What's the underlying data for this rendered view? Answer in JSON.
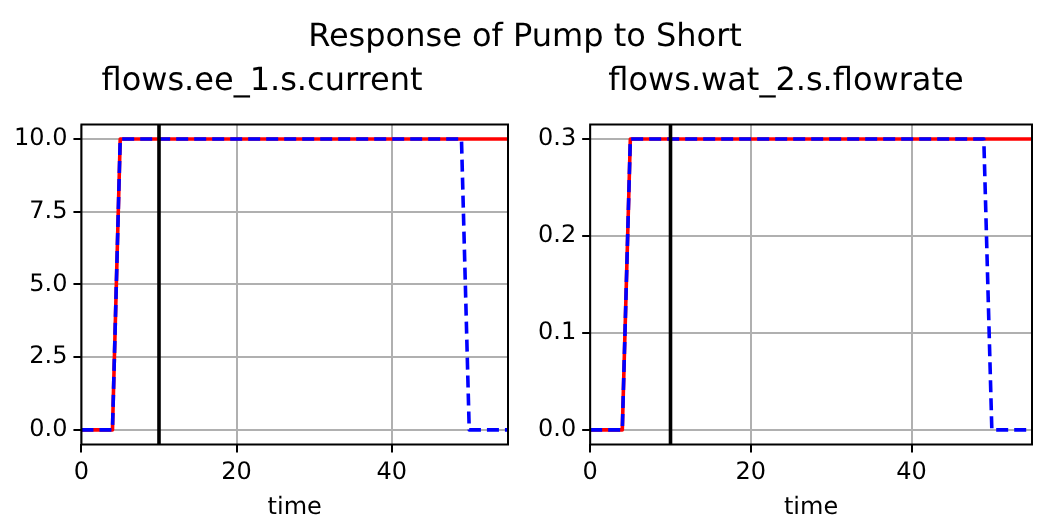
{
  "chart_data": [
    {
      "type": "line",
      "title": "Response of Pump to Short",
      "subtitle": "flows.ee_1.s.current",
      "xlabel": "time",
      "xlim": [
        0,
        55
      ],
      "xticks": [
        0,
        20,
        40
      ],
      "ylim": [
        -0.5,
        10.5
      ],
      "yticks": [
        {
          "value": 0,
          "label": "0.0"
        },
        {
          "value": 2.5,
          "label": "2.5"
        },
        {
          "value": 5,
          "label": "5.0"
        },
        {
          "value": 7.5,
          "label": "7.5"
        },
        {
          "value": 10,
          "label": "10.0"
        }
      ],
      "grid": true,
      "marker": "none",
      "series": [
        {
          "color": "#0000ff",
          "line_style": "dashed",
          "x": [
            0,
            4,
            5,
            49,
            50,
            55
          ],
          "values": [
            0,
            0,
            10,
            10,
            0,
            0
          ]
        },
        {
          "color": "#ff0000",
          "line_style": "solid",
          "x": [
            0,
            4,
            5,
            55
          ],
          "values": [
            0,
            0,
            10,
            10
          ]
        }
      ],
      "ref_lines": [
        {
          "axis": "x",
          "value": 10,
          "color": "#000000"
        }
      ]
    },
    {
      "type": "line",
      "subtitle": "flows.wat_2.s.flowrate",
      "xlabel": "time",
      "xlim": [
        0,
        55
      ],
      "xticks": [
        0,
        20,
        40
      ],
      "ylim": [
        -0.015,
        0.315
      ],
      "yticks": [
        {
          "value": 0,
          "label": "0.0"
        },
        {
          "value": 0.1,
          "label": "0.1"
        },
        {
          "value": 0.2,
          "label": "0.2"
        },
        {
          "value": 0.3,
          "label": "0.3"
        }
      ],
      "grid": true,
      "marker": "none",
      "series": [
        {
          "color": "#0000ff",
          "line_style": "dashed",
          "x": [
            0,
            4,
            5,
            49,
            50,
            55
          ],
          "values": [
            0,
            0,
            0.3,
            0.3,
            0,
            0
          ]
        },
        {
          "color": "#ff0000",
          "line_style": "solid",
          "x": [
            0,
            4,
            5,
            55
          ],
          "values": [
            0,
            0,
            0.3,
            0.3
          ]
        }
      ],
      "ref_lines": [
        {
          "axis": "x",
          "value": 10,
          "color": "#000000"
        }
      ]
    }
  ]
}
